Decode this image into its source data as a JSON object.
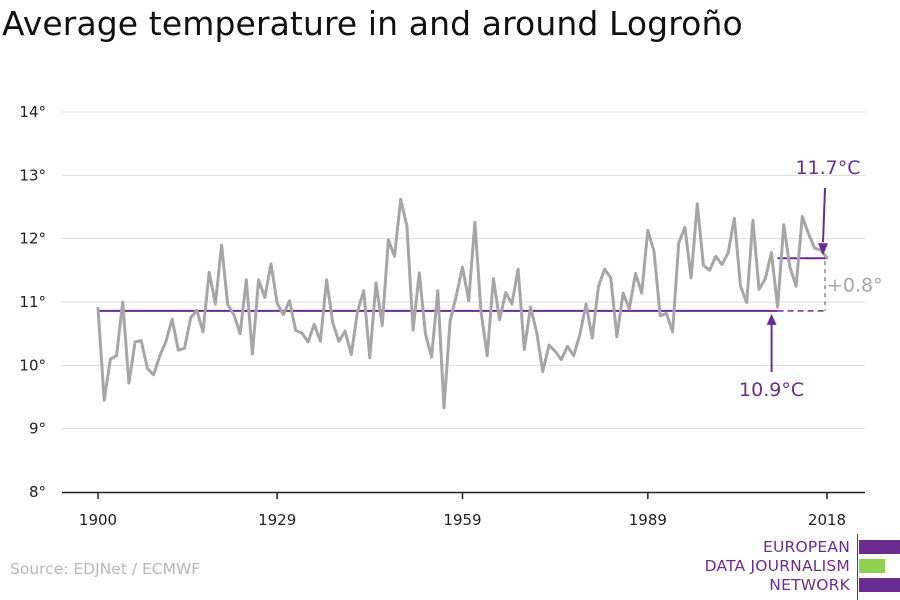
{
  "title": "Average temperature in and around Logroño",
  "source": "Source: EDJNet / ECMWF",
  "logo": {
    "line1": "EUROPEAN",
    "line2": "DATA JOURNALISM",
    "line3": "NETWORK",
    "colors": {
      "purple": "#6b2c91",
      "green": "#8fd14f"
    }
  },
  "colors": {
    "series": "#a6a6a6",
    "reference": "#6b2c91",
    "difference": "#a6a6a6",
    "grid": "#dcdcdc",
    "axis": "#222222"
  },
  "chart_data": {
    "type": "line",
    "title": "Average temperature in and around Logroño",
    "xlabel": "",
    "ylabel": "",
    "xlim": [
      1900,
      2018
    ],
    "ylim": [
      8,
      14
    ],
    "x_ticks": [
      "1900",
      "1929",
      "1959",
      "1989",
      "2018"
    ],
    "y_ticks": [
      "8°",
      "9°",
      "10°",
      "11°",
      "12°",
      "13°",
      "14°"
    ],
    "grid": true,
    "series": [
      {
        "x": [
          1900,
          1901,
          1902,
          1903,
          1904,
          1905,
          1906,
          1907,
          1908,
          1909,
          1910,
          1911,
          1912,
          1913,
          1914,
          1915,
          1916,
          1917,
          1918,
          1919,
          1920,
          1921,
          1922,
          1923,
          1924,
          1925,
          1926,
          1927,
          1928,
          1929,
          1930,
          1931,
          1932,
          1933,
          1934,
          1935,
          1936,
          1937,
          1938,
          1939,
          1940,
          1941,
          1942,
          1943,
          1944,
          1945,
          1946,
          1947,
          1948,
          1949,
          1950,
          1951,
          1952,
          1953,
          1954,
          1955,
          1956,
          1957,
          1958,
          1959,
          1960,
          1961,
          1962,
          1963,
          1964,
          1965,
          1966,
          1967,
          1968,
          1969,
          1970,
          1971,
          1972,
          1973,
          1974,
          1975,
          1976,
          1977,
          1978,
          1979,
          1980,
          1981,
          1982,
          1983,
          1984,
          1985,
          1986,
          1987,
          1988,
          1989,
          1990,
          1991,
          1992,
          1993,
          1994,
          1995,
          1996,
          1997,
          1998,
          1999,
          2000,
          2001,
          2002,
          2003,
          2004,
          2005,
          2006,
          2007,
          2008,
          2009,
          2010,
          2011,
          2012,
          2013,
          2014,
          2015,
          2016,
          2017,
          2018
        ],
        "values": [
          10.9,
          9.45,
          10.1,
          10.15,
          11.0,
          9.72,
          10.37,
          10.39,
          9.95,
          9.85,
          10.15,
          10.38,
          10.73,
          10.24,
          10.27,
          10.75,
          10.87,
          10.53,
          11.47,
          10.97,
          11.9,
          10.96,
          10.8,
          10.5,
          11.35,
          10.18,
          11.35,
          11.07,
          11.6,
          10.98,
          10.8,
          11.02,
          10.55,
          10.51,
          10.37,
          10.65,
          10.38,
          11.35,
          10.67,
          10.38,
          10.54,
          10.17,
          10.85,
          11.18,
          10.12,
          11.3,
          10.63,
          11.98,
          11.72,
          12.62,
          12.2,
          10.56,
          11.46,
          10.5,
          10.13,
          11.18,
          9.33,
          10.7,
          11.1,
          11.55,
          11.02,
          12.26,
          10.85,
          10.15,
          11.37,
          10.72,
          11.15,
          10.97,
          11.52,
          10.25,
          10.92,
          10.53,
          9.9,
          10.32,
          10.22,
          10.09,
          10.3,
          10.15,
          10.49,
          10.97,
          10.43,
          11.24,
          11.52,
          11.38,
          10.45,
          11.14,
          10.89,
          11.45,
          11.14,
          12.13,
          11.8,
          10.78,
          10.82,
          10.53,
          11.93,
          12.18,
          11.38,
          12.55,
          11.58,
          11.5,
          11.72,
          11.59,
          11.78,
          12.32,
          11.25,
          10.99,
          12.29,
          11.2,
          11.36,
          11.78,
          10.92,
          12.22,
          11.55,
          11.25,
          12.35,
          12.08,
          11.85,
          11.82,
          11.7
        ]
      }
    ],
    "annotations": [
      {
        "label": "10.9°C",
        "value": 10.86,
        "from": 1900,
        "to": 2018,
        "solid_until": 2010
      },
      {
        "label": "11.7°C",
        "value": 11.69,
        "from": 2010,
        "to": 2018
      },
      {
        "label": "+0.8°"
      }
    ]
  }
}
